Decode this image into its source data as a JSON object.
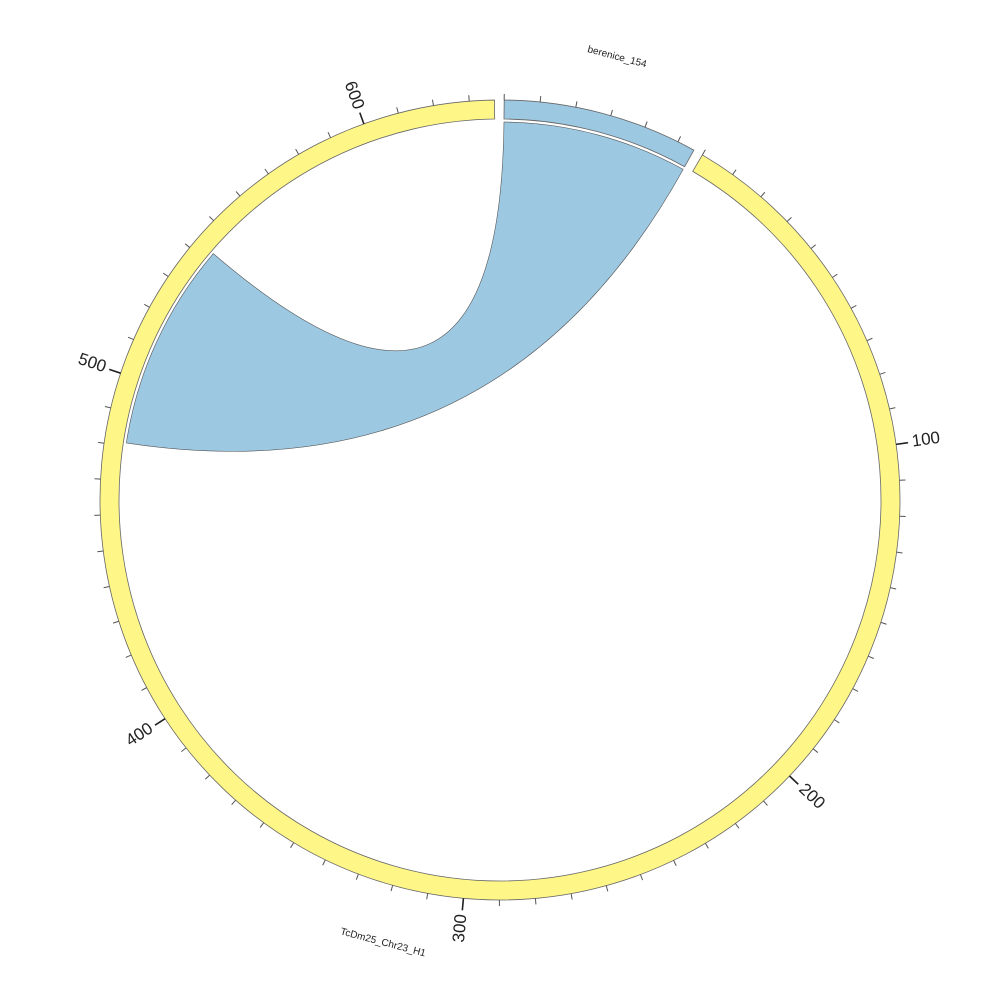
{
  "chart_data": {
    "type": "chord",
    "segments": [
      {
        "name": "berenice_154",
        "length": 55,
        "color": "#9dc8e2",
        "major_ticks": []
      },
      {
        "name": "TcDm25_Chr23_H1",
        "length": 637,
        "color": "#fff688",
        "major_ticks": [
          100,
          200,
          300,
          400,
          500,
          600
        ]
      }
    ],
    "minor_tick_step": 10,
    "links": [
      {
        "source": 0,
        "source_start": 0,
        "source_end": 55,
        "target": 1,
        "target_start": 481,
        "target_end": 543,
        "twisted": true,
        "color": "#9dc8e2"
      }
    ]
  }
}
